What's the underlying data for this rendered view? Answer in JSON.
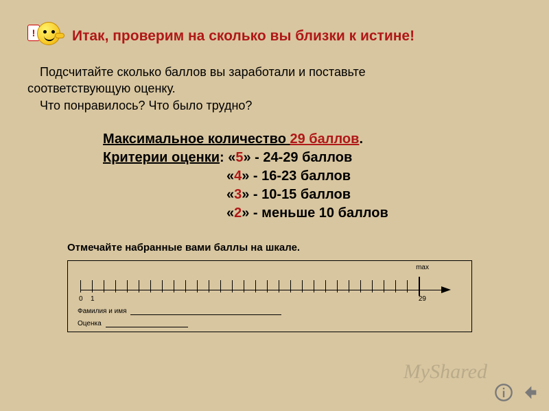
{
  "title": "Итак, проверим на сколько вы близки к истине!",
  "intro": {
    "line1": "Подсчитайте сколько баллов вы заработали и поставьте",
    "line2": "соответствующую оценку.",
    "line3": "Что понравилось? Что было трудно?"
  },
  "criteria": {
    "max_label": "Максимальное количество",
    "max_value": "29 баллов",
    "criteria_label": "Критерии оценки",
    "rows": [
      {
        "grade": "5",
        "range": "24-29 баллов"
      },
      {
        "grade": "4",
        "range": "16-23 баллов"
      },
      {
        "grade": "3",
        "range": "10-15 баллов"
      },
      {
        "grade": "2",
        "range": "меньше 10 баллов"
      }
    ]
  },
  "scale": {
    "instruction": "Отмечайте набранные вами баллы на шкале.",
    "max_label": "max",
    "ticks": 30,
    "big_tick_index": 29,
    "tick_spacing_px": 17,
    "labels": {
      "zero": "0",
      "one": "1",
      "max": "29"
    },
    "name_label": "Фамилия и имя",
    "grade_label": "Оценка"
  },
  "watermark": "MyShared",
  "colors": {
    "background": "#d8c6a0",
    "title": "#b01818",
    "text": "#000000"
  }
}
